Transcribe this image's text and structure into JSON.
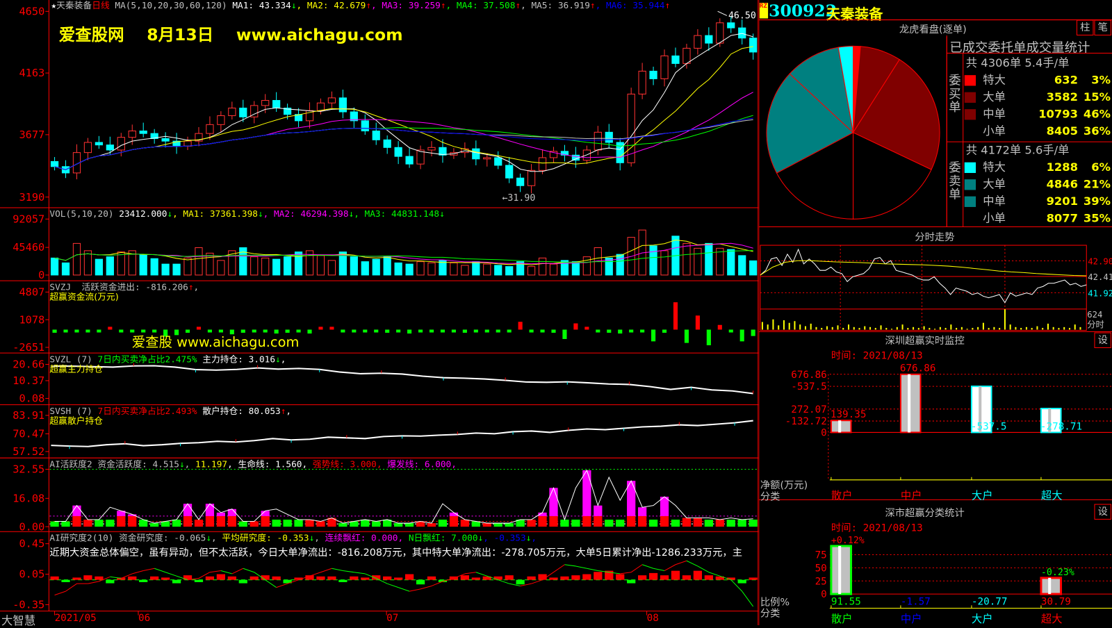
{
  "colors": {
    "up": "#ff3232",
    "down": "#00ffff",
    "grid": "#ff0000",
    "ma": [
      "#ffffff",
      "#ffff00",
      "#ff00ff",
      "#00ff00",
      "#c0c0c0",
      "#0000ff"
    ]
  },
  "main": {
    "header": [
      {
        "text": "★",
        "color": "#ffffff"
      },
      {
        "text": "天秦装备",
        "color": "#c0c0c0"
      },
      {
        "text": "日线",
        "color": "#ff0000"
      },
      {
        "text": " MA(5,10,20,30,60,120) ",
        "color": "#c0c0c0"
      },
      {
        "text": "MA1: 43.334",
        "color": "#ffffff"
      },
      {
        "text": "↓",
        "color": "#00ff00"
      },
      {
        "text": ", MA2: 42.679",
        "color": "#ffff00"
      },
      {
        "text": "↑",
        "color": "#ff0000"
      },
      {
        "text": ", MA3: 39.259",
        "color": "#ff00ff"
      },
      {
        "text": "↑",
        "color": "#ff0000"
      },
      {
        "text": ", MA4: 37.508",
        "color": "#00ff00"
      },
      {
        "text": "↑",
        "color": "#ff0000"
      },
      {
        "text": ", MA5: 36.919",
        "color": "#c0c0c0"
      },
      {
        "text": "↑",
        "color": "#ff0000"
      },
      {
        "text": ", MA6: 35.944",
        "color": "#0000ff"
      },
      {
        "text": "↑",
        "color": "#ff0000"
      }
    ],
    "watermark": "爱查股网    8月13日    www.aichagu.com",
    "y_ticks": [
      "4650",
      "4163",
      "3677",
      "3190"
    ],
    "high_label": "46.50",
    "low_label": "←31.90",
    "closes": [
      34.3,
      33.8,
      35.4,
      36.2,
      36.0,
      35.6,
      36.6,
      37.1,
      36.9,
      36.5,
      36.3,
      35.9,
      36.3,
      36.9,
      37.6,
      38.3,
      38.9,
      38.2,
      39.1,
      39.5,
      38.9,
      38.4,
      37.9,
      38.7,
      39.3,
      39.7,
      38.6,
      37.9,
      37.1,
      36.4,
      35.8,
      35.1,
      34.5,
      35.6,
      35.8,
      35.2,
      35.4,
      35.7,
      34.9,
      35.0,
      34.4,
      33.4,
      32.8,
      34.0,
      35.0,
      35.5,
      35.2,
      34.8,
      35.6,
      37.0,
      36.2,
      34.6,
      40.0,
      41.8,
      41.2,
      43.0,
      42.4,
      43.6,
      44.6,
      44.0,
      45.6,
      45.2,
      44.4,
      43.3
    ]
  },
  "vol": {
    "header": [
      {
        "text": "VOL(5,10,20) ",
        "color": "#c0c0c0"
      },
      {
        "text": "23412.000",
        "color": "#ffffff"
      },
      {
        "text": "↓",
        "color": "#00ff00"
      },
      {
        "text": ", MA1: 37361.398",
        "color": "#ffff00"
      },
      {
        "text": "↓",
        "color": "#00ff00"
      },
      {
        "text": ", MA2: 46294.398",
        "color": "#ff00ff"
      },
      {
        "text": "↓",
        "color": "#00ff00"
      },
      {
        "text": ", MA3: 44831.148",
        "color": "#00ff00"
      },
      {
        "text": "↓",
        "color": "#00ff00"
      }
    ],
    "y_ticks": [
      "92057",
      "45460",
      "0"
    ],
    "values": [
      28000,
      20000,
      52000,
      40000,
      26000,
      30000,
      38000,
      40000,
      34000,
      27000,
      18000,
      18000,
      28000,
      45000,
      36000,
      24000,
      40000,
      45000,
      30000,
      28000,
      26000,
      30000,
      38000,
      40000,
      32000,
      24000,
      38000,
      30000,
      22000,
      26000,
      30000,
      20000,
      18000,
      22000,
      20000,
      24000,
      20000,
      16000,
      22000,
      18000,
      16000,
      14000,
      22000,
      14000,
      28000,
      18000,
      24000,
      22000,
      30000,
      45000,
      28000,
      34000,
      62000,
      74000,
      48000,
      40000,
      64000,
      52000,
      44000,
      52000,
      44000,
      42000,
      32000,
      23412
    ]
  },
  "svzj": {
    "header": [
      {
        "text": "SVZJ  活跃资金进出: -816.206",
        "color": "#c0c0c0"
      },
      {
        "text": "↑",
        "color": "#ff0000"
      },
      {
        "text": ",",
        "color": "#c0c0c0"
      }
    ],
    "subtitle": "超赢资金流(万元)",
    "watermark": "爱查股 www.aichagu.com",
    "y_ticks": [
      "4807",
      "1078",
      "-2651"
    ],
    "values": [
      -400,
      -200,
      -150,
      -300,
      -250,
      300,
      -300,
      -200,
      -350,
      -200,
      -900,
      -700,
      -400,
      200,
      -300,
      -250,
      -600,
      -400,
      -300,
      -350,
      -500,
      -400,
      -300,
      -500,
      200,
      150,
      -300,
      -250,
      -200,
      -300,
      -400,
      -350,
      -500,
      -300,
      -250,
      -200,
      -250,
      -400,
      -300,
      -200,
      -200,
      -250,
      1000,
      -300,
      -200,
      -400,
      -1200,
      800,
      300,
      -300,
      -400,
      -500,
      -350,
      -200,
      -1500,
      -400,
      3500,
      -1700,
      1800,
      -2000,
      600,
      -200,
      -1500,
      -816
    ]
  },
  "svzl": {
    "header": [
      {
        "text": "SVZL (7) ",
        "color": "#c0c0c0"
      },
      {
        "text": "7日内买卖净占比2.475%",
        "color": "#00ff00"
      },
      {
        "text": " 主力持仓: 3.016",
        "color": "#ffffff"
      },
      {
        "text": "↓",
        "color": "#00ff00"
      },
      {
        "text": ",",
        "color": "#ffffff"
      }
    ],
    "subtitle": "超赢主力持仓",
    "y_ticks": [
      "20.66",
      "10.37",
      "0.08"
    ],
    "values": [
      19.5,
      19.6,
      19.3,
      19.0,
      19.7,
      19.8,
      19.0,
      17.5,
      17.2,
      17.6,
      18.5,
      17.8,
      18.2,
      17.6,
      16.0,
      15.0,
      15.3,
      14.8,
      13.5,
      12.6,
      12.3,
      11.8,
      11.0,
      10.0,
      9.8,
      10.1,
      9.5,
      8.8,
      8.5,
      7.2,
      5.5,
      6.8,
      5.2,
      4.6,
      3.0
    ]
  },
  "svsh": {
    "header": [
      {
        "text": "SVSH (7) ",
        "color": "#c0c0c0"
      },
      {
        "text": "7日内买卖净占比2.493%",
        "color": "#ff0000"
      },
      {
        "text": " 散户持仓: 80.053",
        "color": "#ffffff"
      },
      {
        "text": "↑",
        "color": "#ff0000"
      },
      {
        "text": ",",
        "color": "#ffffff"
      }
    ],
    "subtitle": "超赢散户持仓",
    "y_ticks": [
      "83.91",
      "70.47",
      "57.52"
    ],
    "values": [
      62.0,
      61.5,
      61.2,
      62.5,
      63.2,
      61.8,
      62.5,
      63.5,
      64.0,
      65.0,
      64.5,
      65.5,
      67.0,
      66.0,
      66.5,
      68.0,
      67.5,
      67.0,
      68.5,
      69.0,
      68.8,
      69.5,
      70.0,
      71.0,
      70.5,
      72.0,
      72.5,
      71.5,
      73.0,
      74.0,
      73.5,
      74.5,
      75.5,
      76.0,
      77.0,
      76.5,
      77.5,
      78.5,
      80.053
    ]
  },
  "ai_active": {
    "header": [
      {
        "text": "AI活跃度2 资金活跃度: 4.515",
        "color": "#c0c0c0"
      },
      {
        "text": "↓",
        "color": "#00ff00"
      },
      {
        "text": ", ",
        "color": "#c0c0c0"
      },
      {
        "text": "11.197",
        "color": "#ffff00"
      },
      {
        "text": ", 生命线: 1.560, ",
        "color": "#ffffff"
      },
      {
        "text": "强势线: 3.000, ",
        "color": "#ff0000"
      },
      {
        "text": "爆发线: 6.000,",
        "color": "#ff00ff"
      }
    ],
    "y_ticks": [
      "32.55",
      "16.08",
      "0.00"
    ],
    "values": [
      3,
      3,
      12,
      4,
      4,
      11,
      9,
      7,
      4,
      2,
      3,
      4,
      13,
      4,
      13,
      8,
      10,
      3,
      3,
      9,
      10,
      7,
      4,
      4,
      3,
      5,
      2,
      3,
      4,
      3,
      4,
      2,
      2,
      3,
      2,
      13,
      8,
      4,
      3,
      2,
      2,
      2,
      4,
      4,
      8,
      22,
      4,
      22,
      32,
      12,
      28,
      15,
      26,
      11,
      12,
      17,
      12,
      5,
      5,
      5,
      4,
      5,
      4,
      4.5
    ]
  },
  "ai_research": {
    "header": [
      {
        "text": "AI研究度2(10) 资金研究度: -0.065",
        "color": "#c0c0c0"
      },
      {
        "text": "↓",
        "color": "#00ff00"
      },
      {
        "text": ", ",
        "color": "#c0c0c0"
      },
      {
        "text": "平均研究度: -0.353",
        "color": "#ffff00"
      },
      {
        "text": "↓",
        "color": "#00ff00"
      },
      {
        "text": ", ",
        "color": "#c0c0c0"
      },
      {
        "text": "连续飘红: 0.000, ",
        "color": "#ff00ff"
      },
      {
        "text": "N日飘红: 7.000",
        "color": "#00ff00"
      },
      {
        "text": "↓",
        "color": "#00ff00"
      },
      {
        "text": ", -0.353",
        "color": "#0000ff"
      },
      {
        "text": "↓",
        "color": "#00ff00"
      },
      {
        "text": ",",
        "color": "#0000ff"
      }
    ],
    "comment": "近期大资金总体偏空，虽有异动，但不太活跃，今日大单净流出：-816.208万元，其中特大单净流出：-278.705万元，大单5日累计净出-1286.233万元，主",
    "y_ticks": [
      "0.45",
      "0.05",
      "-0.35"
    ],
    "bars": [
      0.03,
      -0.02,
      0.02,
      0.04,
      0.03,
      -0.03,
      0.02,
      0.03,
      -0.02,
      0.03,
      0.02,
      -0.03,
      0.04,
      -0.02,
      0.03,
      0.05,
      0.03,
      -0.03,
      0.03,
      0.04,
      0.03,
      -0.03,
      0.02,
      0.04,
      0.03,
      0.03,
      -0.02,
      0.03,
      0.02,
      0.04,
      0.03,
      0.02,
      0.05,
      -0.04,
      0.03,
      -0.02,
      0.03,
      0.04,
      0.02,
      0.03,
      0.03,
      0.04,
      -0.04,
      0.03,
      0.05,
      0.02,
      0.03,
      0.04,
      0.05,
      0.07,
      0.08,
      0.05,
      -0.03,
      0.04,
      0.06,
      0.04,
      0.08,
      0.04,
      0.08,
      0.04,
      0.03,
      0.02,
      -0.03,
      0.02
    ],
    "line": [
      -0.2,
      -0.15,
      -0.05,
      -0.05,
      -0.02,
      0.04,
      0.02,
      0.08,
      0.12,
      0.15,
      0.1,
      0.05,
      0.0,
      0.02,
      0.1,
      0.12,
      0.08,
      0.15,
      0.1,
      0.0,
      -0.1,
      -0.05,
      0.0,
      0.05,
      0.1,
      0.15,
      0.12,
      0.1,
      0.08,
      0.02,
      -0.05,
      -0.1,
      -0.15,
      -0.12,
      -0.08,
      -0.02,
      0.02,
      0.08,
      0.1,
      0.05,
      0.0,
      -0.05,
      -0.08,
      -0.05,
      0.0,
      0.1,
      0.2,
      0.18,
      0.15,
      0.12,
      0.1,
      0.08,
      0.1,
      0.2,
      0.15,
      0.12,
      0.2,
      0.25,
      0.18,
      0.1,
      0.05,
      0.0,
      -0.15,
      -0.35
    ]
  },
  "date_axis": {
    "brand": "大智慧",
    "labels": [
      "2021/05",
      "06",
      "07",
      "08"
    ]
  },
  "stock": {
    "badge": "RZ",
    "code": "300922",
    "name": "天秦装备"
  },
  "lhkp": {
    "title": "龙虎看盘(逐单)",
    "btn_bar": "柱",
    "btn_tick": "笔",
    "table_title": "已成交委托单成交量统计",
    "buy": {
      "side": "委买单",
      "total": "共 4306单 5.4手/单",
      "rows": [
        {
          "name": "特大",
          "value": "632",
          "pct": "3%",
          "color": "#ff0000"
        },
        {
          "name": "大单",
          "value": "3582",
          "pct": "15%",
          "color": "#800000"
        },
        {
          "name": "中单",
          "value": "10793",
          "pct": "46%",
          "color": "#800000"
        },
        {
          "name": "小单",
          "value": "8405",
          "pct": "36%",
          "color": ""
        }
      ]
    },
    "sell": {
      "side": "委卖单",
      "total": "共 4172单 5.6手/单",
      "rows": [
        {
          "name": "特大",
          "value": "1288",
          "pct": "6%",
          "color": "#00ffff"
        },
        {
          "name": "大单",
          "value": "4846",
          "pct": "21%",
          "color": "#008080"
        },
        {
          "name": "中单",
          "value": "9201",
          "pct": "39%",
          "color": "#008080"
        },
        {
          "name": "小单",
          "value": "8077",
          "pct": "35%",
          "color": ""
        }
      ]
    }
  },
  "intraday": {
    "title": "分时走势",
    "price_labels": [
      "42.90",
      "42.41",
      "41.92"
    ],
    "vol_labels": [
      "624",
      "分时"
    ],
    "price": [
      42.45,
      42.6,
      42.95,
      43.0,
      42.75,
      43.1,
      42.85,
      43.25,
      42.8,
      42.95,
      42.8,
      42.6,
      42.6,
      42.7,
      42.55,
      42.5,
      42.25,
      42.4,
      42.45,
      42.5,
      42.65,
      42.95,
      43.0,
      42.8,
      42.9,
      42.6,
      42.55,
      42.5,
      42.45,
      42.35,
      42.3,
      42.3,
      42.4,
      42.2,
      42.05,
      41.85,
      42.05,
      42.0,
      41.95,
      41.85,
      41.9,
      41.8,
      41.75,
      41.8,
      41.85,
      41.6,
      41.9,
      41.8,
      41.85,
      41.9,
      41.85,
      42.05,
      42.1,
      42.2,
      42.2,
      42.25,
      42.3,
      42.15,
      42.2,
      42.1,
      42.15
    ],
    "average": [
      42.45,
      42.7,
      42.85,
      42.9,
      42.9,
      42.88,
      42.86,
      42.85,
      42.84,
      42.82,
      42.8,
      42.79,
      42.78,
      42.77,
      42.75,
      42.73,
      42.7,
      42.66,
      42.62,
      42.58,
      42.55,
      42.53,
      42.5,
      42.48,
      42.46,
      42.44,
      42.43
    ],
    "volume": [
      9,
      6,
      12,
      5,
      11,
      8,
      10,
      6,
      4,
      7,
      3,
      2,
      4,
      3,
      5,
      2,
      6,
      3,
      2,
      4,
      3,
      2,
      5,
      2,
      1,
      3,
      6,
      2,
      3,
      2,
      4,
      2,
      1,
      3,
      2,
      6,
      2,
      3,
      1,
      2,
      3,
      8,
      2,
      3,
      2,
      24,
      6,
      3,
      2,
      3,
      2,
      4,
      2,
      7,
      3,
      2,
      3,
      2,
      6,
      3
    ]
  },
  "sz_monitor": {
    "title": "深圳超赢实时监控",
    "time": "时间: 2021/08/13",
    "setting": "设",
    "y_ticks": [
      "676.86",
      "272.07",
      "0",
      "-132.72",
      "-537.5"
    ],
    "ylabel": "净额(万元)",
    "xlabel": "分类",
    "bars": [
      {
        "cat": "散户",
        "value": 139.35,
        "label": "139.35",
        "color": "#ff0000"
      },
      {
        "cat": "中户",
        "value": 676.86,
        "label": "676.86",
        "color": "#ff0000"
      },
      {
        "cat": "大户",
        "value": -537.5,
        "label": "-537.5",
        "color": "#00ffff"
      },
      {
        "cat": "超大",
        "value": -278.71,
        "label": "-278.71",
        "color": "#00ffff"
      }
    ]
  },
  "sz_class": {
    "title": "深市超赢分类统计",
    "time": "时间: 2021/08/13",
    "setting": "设",
    "y_ticks": [
      "75",
      "50",
      "25",
      "0"
    ],
    "ylabel": "比例%",
    "xlabel": "分类",
    "bars": [
      {
        "cat": "散户",
        "value": 91.55,
        "label": "91.55",
        "change": "+0.12%",
        "color": "#00ff00",
        "edge": "#00ff00",
        "change_color": "#ff0000"
      },
      {
        "cat": "中户",
        "value": -1.57,
        "label": "-1.57",
        "change": "",
        "color": "#0000ff",
        "edge": "",
        "change_color": ""
      },
      {
        "cat": "大户",
        "value": -20.77,
        "label": "-20.77",
        "change": "",
        "color": "#00ffff",
        "edge": "",
        "change_color": ""
      },
      {
        "cat": "超大",
        "value": 30.79,
        "label": "30.79",
        "change": "-0.23%",
        "color": "#ff0000",
        "edge": "#ff0000",
        "change_color": "#00ff00"
      }
    ]
  }
}
